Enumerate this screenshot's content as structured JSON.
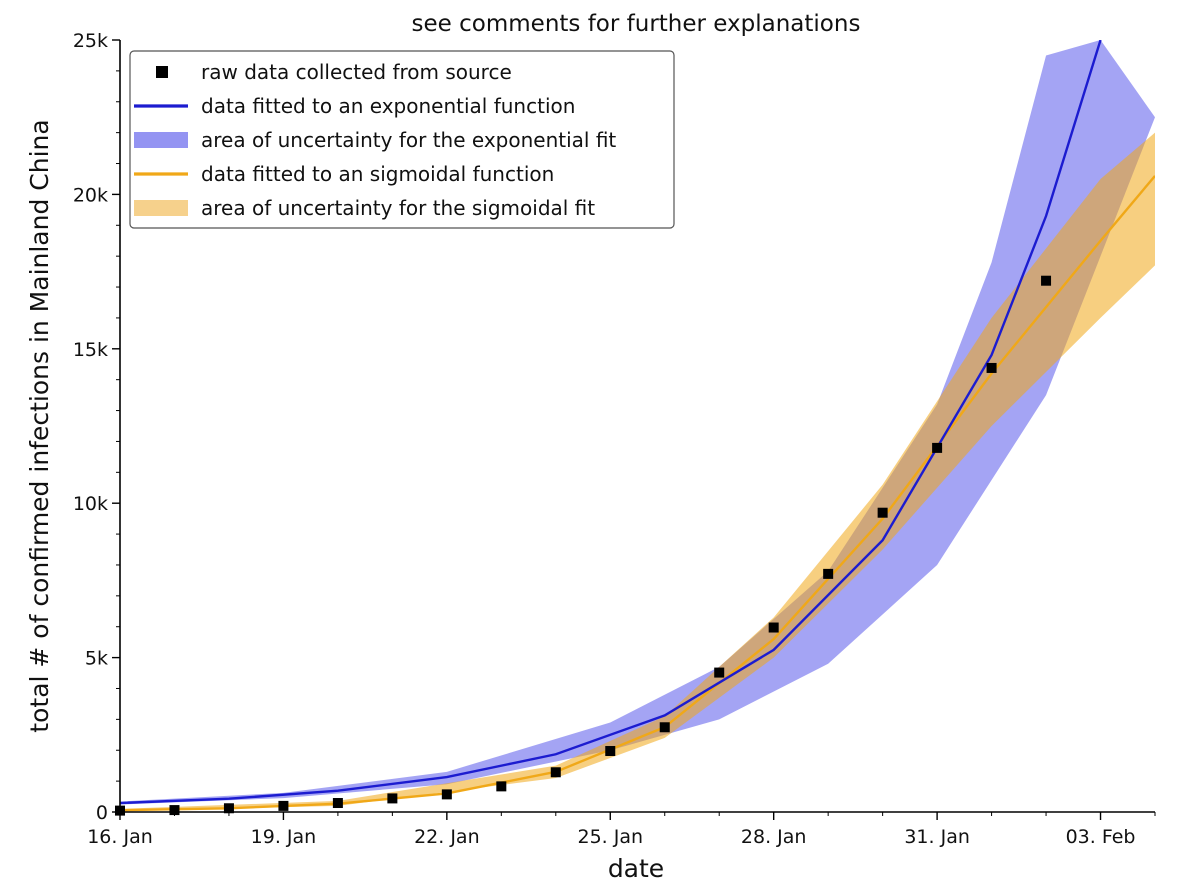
{
  "chart_data": {
    "type": "scatter",
    "title": "see comments for further explanations",
    "xlabel": "date",
    "ylabel": "total # of confirmed infections in Mainland China",
    "xlim": [
      "2020-01-16",
      "2020-02-04"
    ],
    "ylim": [
      0,
      25000
    ],
    "x_ticks": [
      {
        "value": "2020-01-16",
        "label": "16. Jan"
      },
      {
        "value": "2020-01-19",
        "label": "19. Jan"
      },
      {
        "value": "2020-01-22",
        "label": "22. Jan"
      },
      {
        "value": "2020-01-25",
        "label": "25. Jan"
      },
      {
        "value": "2020-01-28",
        "label": "28. Jan"
      },
      {
        "value": "2020-01-31",
        "label": "31. Jan"
      },
      {
        "value": "2020-02-03",
        "label": "03. Feb"
      }
    ],
    "y_ticks": [
      {
        "value": 0,
        "label": "0"
      },
      {
        "value": 5000,
        "label": "5k"
      },
      {
        "value": 10000,
        "label": "10k"
      },
      {
        "value": 15000,
        "label": "15k"
      },
      {
        "value": 20000,
        "label": "20k"
      },
      {
        "value": 25000,
        "label": "25k"
      }
    ],
    "grid": false,
    "legend_position": "top-left",
    "legend": [
      {
        "kind": "marker",
        "label": "raw data collected from source",
        "color": "#000000"
      },
      {
        "kind": "line",
        "label": "data fitted to an exponential function",
        "color": "#1c1cd0"
      },
      {
        "kind": "band",
        "label": "area of uncertainty for the exponential fit",
        "color": "#9494f2"
      },
      {
        "kind": "line",
        "label": "data fitted to an sigmoidal function",
        "color": "#f0a818"
      },
      {
        "kind": "band",
        "label": "area of uncertainty for the sigmoidal fit",
        "color": "#f6d18c"
      }
    ],
    "colors": {
      "exponential_line": "#1c1cd0",
      "exponential_band": "#7d7df0",
      "sigmoidal_line": "#f0a818",
      "sigmoidal_band": "#f0a818",
      "raw_data": "#000000"
    },
    "raw_data": [
      {
        "x": "2020-01-16",
        "y": 45
      },
      {
        "x": "2020-01-17",
        "y": 62
      },
      {
        "x": "2020-01-18",
        "y": 121
      },
      {
        "x": "2020-01-19",
        "y": 198
      },
      {
        "x": "2020-01-20",
        "y": 291
      },
      {
        "x": "2020-01-21",
        "y": 440
      },
      {
        "x": "2020-01-22",
        "y": 571
      },
      {
        "x": "2020-01-23",
        "y": 830
      },
      {
        "x": "2020-01-24",
        "y": 1287
      },
      {
        "x": "2020-01-25",
        "y": 1975
      },
      {
        "x": "2020-01-26",
        "y": 2744
      },
      {
        "x": "2020-01-27",
        "y": 4515
      },
      {
        "x": "2020-01-28",
        "y": 5974
      },
      {
        "x": "2020-01-29",
        "y": 7711
      },
      {
        "x": "2020-01-30",
        "y": 9692
      },
      {
        "x": "2020-01-31",
        "y": 11791
      },
      {
        "x": "2020-02-01",
        "y": 14380
      },
      {
        "x": "2020-02-02",
        "y": 17205
      }
    ],
    "exponential_fit": [
      {
        "x": "2020-01-16",
        "y": 290
      },
      {
        "x": "2020-01-18",
        "y": 430
      },
      {
        "x": "2020-01-20",
        "y": 690
      },
      {
        "x": "2020-01-22",
        "y": 1130
      },
      {
        "x": "2020-01-24",
        "y": 1870
      },
      {
        "x": "2020-01-26",
        "y": 3130
      },
      {
        "x": "2020-01-28",
        "y": 5250
      },
      {
        "x": "2020-01-30",
        "y": 8800
      },
      {
        "x": "2020-02-01",
        "y": 14800
      },
      {
        "x": "2020-02-02",
        "y": 19300
      },
      {
        "x": "2020-02-03",
        "y": 25000
      }
    ],
    "exponential_band": {
      "lower": [
        {
          "x": "2020-01-16",
          "y": 240
        },
        {
          "x": "2020-01-19",
          "y": 450
        },
        {
          "x": "2020-01-22",
          "y": 900
        },
        {
          "x": "2020-01-25",
          "y": 2000
        },
        {
          "x": "2020-01-27",
          "y": 3000
        },
        {
          "x": "2020-01-29",
          "y": 4800
        },
        {
          "x": "2020-01-31",
          "y": 8000
        },
        {
          "x": "2020-02-02",
          "y": 13500
        },
        {
          "x": "2020-02-04",
          "y": 22500
        }
      ],
      "upper": [
        {
          "x": "2020-01-16",
          "y": 340
        },
        {
          "x": "2020-01-19",
          "y": 620
        },
        {
          "x": "2020-01-22",
          "y": 1300
        },
        {
          "x": "2020-01-25",
          "y": 2900
        },
        {
          "x": "2020-01-27",
          "y": 4700
        },
        {
          "x": "2020-01-29",
          "y": 7800
        },
        {
          "x": "2020-01-31",
          "y": 13200
        },
        {
          "x": "2020-02-01",
          "y": 17800
        },
        {
          "x": "2020-02-02",
          "y": 24500
        },
        {
          "x": "2020-02-03",
          "y": 25000
        }
      ]
    },
    "sigmoidal_fit": [
      {
        "x": "2020-01-16",
        "y": 60
      },
      {
        "x": "2020-01-18",
        "y": 120
      },
      {
        "x": "2020-01-20",
        "y": 270
      },
      {
        "x": "2020-01-22",
        "y": 600
      },
      {
        "x": "2020-01-24",
        "y": 1300
      },
      {
        "x": "2020-01-26",
        "y": 2750
      },
      {
        "x": "2020-01-28",
        "y": 5600
      },
      {
        "x": "2020-01-30",
        "y": 9500
      },
      {
        "x": "2020-02-01",
        "y": 14200
      },
      {
        "x": "2020-02-03",
        "y": 18500
      },
      {
        "x": "2020-02-04",
        "y": 20600
      }
    ],
    "sigmoidal_band": {
      "lower": [
        {
          "x": "2020-01-16",
          "y": 30
        },
        {
          "x": "2020-01-20",
          "y": 200
        },
        {
          "x": "2020-01-24",
          "y": 1100
        },
        {
          "x": "2020-01-26",
          "y": 2400
        },
        {
          "x": "2020-01-28",
          "y": 5000
        },
        {
          "x": "2020-01-30",
          "y": 8500
        },
        {
          "x": "2020-02-01",
          "y": 12500
        },
        {
          "x": "2020-02-03",
          "y": 16000
        },
        {
          "x": "2020-02-04",
          "y": 17700
        }
      ],
      "upper": [
        {
          "x": "2020-01-16",
          "y": 100
        },
        {
          "x": "2020-01-20",
          "y": 360
        },
        {
          "x": "2020-01-24",
          "y": 1500
        },
        {
          "x": "2020-01-26",
          "y": 3100
        },
        {
          "x": "2020-01-28",
          "y": 6300
        },
        {
          "x": "2020-01-30",
          "y": 10600
        },
        {
          "x": "2020-02-01",
          "y": 16000
        },
        {
          "x": "2020-02-03",
          "y": 20500
        },
        {
          "x": "2020-02-04",
          "y": 22000
        }
      ]
    }
  }
}
